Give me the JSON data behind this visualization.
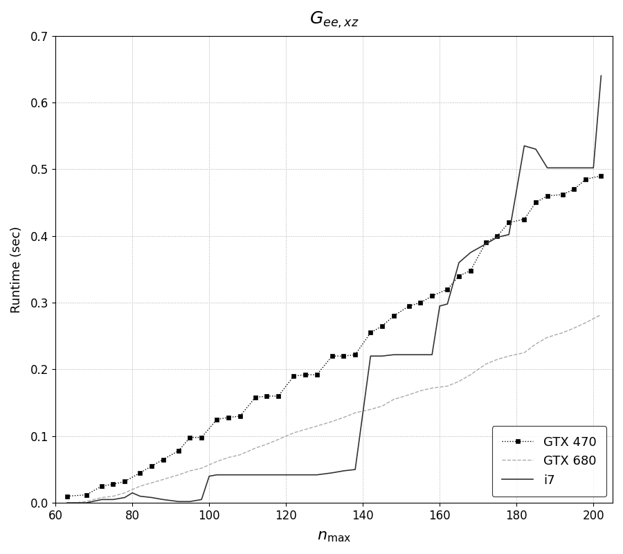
{
  "title": "$G_{ee,xz}$",
  "xlabel": "$n_{\\mathrm{max}}$",
  "ylabel": "Runtime (sec)",
  "xlim": [
    60,
    205
  ],
  "ylim": [
    0,
    0.7
  ],
  "xticks": [
    60,
    80,
    100,
    120,
    140,
    160,
    180,
    200
  ],
  "yticks": [
    0.0,
    0.1,
    0.2,
    0.3,
    0.4,
    0.5,
    0.6,
    0.7
  ],
  "gtx470_x": [
    63,
    68,
    72,
    75,
    78,
    82,
    85,
    88,
    92,
    95,
    98,
    102,
    105,
    108,
    112,
    115,
    118,
    122,
    125,
    128,
    132,
    135,
    138,
    142,
    145,
    148,
    152,
    155,
    158,
    162,
    165,
    168,
    172,
    175,
    178,
    182,
    185,
    188,
    192,
    195,
    198,
    202
  ],
  "gtx470_y": [
    0.01,
    0.012,
    0.025,
    0.028,
    0.032,
    0.045,
    0.055,
    0.065,
    0.078,
    0.098,
    0.098,
    0.125,
    0.128,
    0.13,
    0.158,
    0.16,
    0.16,
    0.19,
    0.192,
    0.192,
    0.22,
    0.22,
    0.222,
    0.255,
    0.265,
    0.28,
    0.295,
    0.3,
    0.31,
    0.32,
    0.34,
    0.348,
    0.39,
    0.4,
    0.42,
    0.425,
    0.45,
    0.46,
    0.462,
    0.47,
    0.485,
    0.49
  ],
  "gtx680_x": [
    63,
    65,
    68,
    72,
    75,
    78,
    82,
    85,
    88,
    92,
    95,
    98,
    102,
    105,
    108,
    112,
    115,
    118,
    122,
    125,
    128,
    132,
    135,
    138,
    142,
    145,
    148,
    152,
    155,
    158,
    162,
    165,
    168,
    172,
    175,
    178,
    182,
    185,
    188,
    192,
    195,
    198,
    202
  ],
  "gtx680_y": [
    0.0,
    0.0,
    0.002,
    0.008,
    0.01,
    0.015,
    0.025,
    0.03,
    0.035,
    0.042,
    0.048,
    0.052,
    0.062,
    0.068,
    0.072,
    0.082,
    0.088,
    0.095,
    0.105,
    0.11,
    0.115,
    0.122,
    0.128,
    0.135,
    0.14,
    0.145,
    0.155,
    0.162,
    0.168,
    0.172,
    0.175,
    0.182,
    0.192,
    0.208,
    0.215,
    0.22,
    0.225,
    0.238,
    0.248,
    0.255,
    0.262,
    0.27,
    0.282
  ],
  "i7_x": [
    63,
    65,
    68,
    72,
    75,
    78,
    80,
    82,
    85,
    88,
    92,
    95,
    98,
    100,
    102,
    105,
    108,
    112,
    115,
    118,
    122,
    125,
    128,
    132,
    135,
    138,
    142,
    145,
    148,
    152,
    155,
    158,
    160,
    162,
    165,
    168,
    172,
    175,
    178,
    182,
    185,
    188,
    192,
    195,
    198,
    200,
    202
  ],
  "i7_y": [
    0.0,
    0.0,
    0.0,
    0.005,
    0.005,
    0.008,
    0.015,
    0.01,
    0.008,
    0.005,
    0.002,
    0.002,
    0.005,
    0.04,
    0.042,
    0.042,
    0.042,
    0.042,
    0.042,
    0.042,
    0.042,
    0.042,
    0.042,
    0.045,
    0.048,
    0.05,
    0.22,
    0.22,
    0.222,
    0.222,
    0.222,
    0.222,
    0.295,
    0.298,
    0.36,
    0.375,
    0.388,
    0.398,
    0.402,
    0.535,
    0.53,
    0.502,
    0.502,
    0.502,
    0.502,
    0.502,
    0.64
  ]
}
